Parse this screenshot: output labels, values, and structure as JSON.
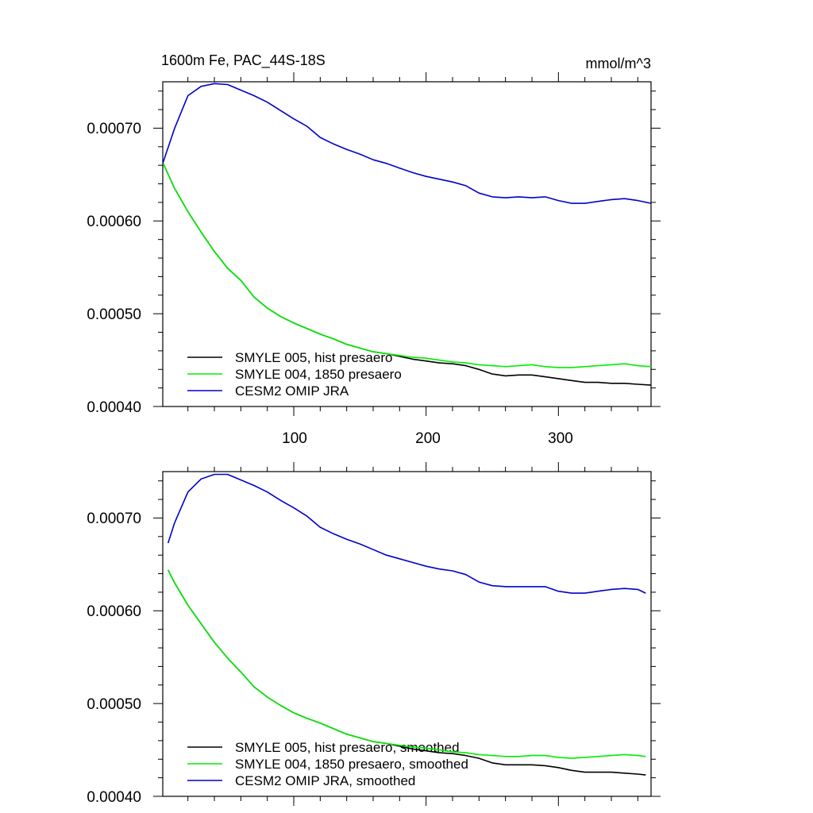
{
  "chart_data": [
    {
      "type": "line",
      "title_left": "1600m Fe, PAC_44S-18S",
      "title_right": "mmol/m^3",
      "xlabel": "",
      "ylabel": "",
      "xlim": [
        1,
        370
      ],
      "ylim": [
        0.0004,
        0.00075
      ],
      "x_ticks": [
        100,
        200,
        300
      ],
      "x_tick_labels": [
        "100",
        "200",
        "300"
      ],
      "y_ticks": [
        0.0004,
        0.0005,
        0.0006,
        0.0007
      ],
      "y_tick_labels": [
        "0.00040",
        "0.00050",
        "0.00060",
        "0.00070"
      ],
      "legend_position": "bottom-left",
      "series": [
        {
          "name": "SMYLE 005, hist presaero",
          "color": "#000000",
          "x": [
            1,
            10,
            20,
            30,
            40,
            50,
            60,
            70,
            80,
            90,
            100,
            110,
            120,
            130,
            140,
            150,
            160,
            170,
            180,
            190,
            200,
            210,
            220,
            230,
            240,
            250,
            260,
            270,
            280,
            290,
            300,
            310,
            320,
            330,
            340,
            350,
            360,
            370
          ],
          "values": [
            0.000663,
            0.000635,
            0.00061,
            0.000588,
            0.000567,
            0.000549,
            0.000536,
            0.000518,
            0.000506,
            0.000497,
            0.00049,
            0.000484,
            0.000478,
            0.000473,
            0.000467,
            0.000463,
            0.000459,
            0.000457,
            0.000454,
            0.000451,
            0.000449,
            0.000447,
            0.000446,
            0.000444,
            0.00044,
            0.000435,
            0.000433,
            0.000434,
            0.000434,
            0.000432,
            0.00043,
            0.000428,
            0.000426,
            0.000426,
            0.000425,
            0.000425,
            0.000424,
            0.000423
          ]
        },
        {
          "name": "SMYLE 004, 1850 presaero",
          "color": "#00ee00",
          "x": [
            1,
            10,
            20,
            30,
            40,
            50,
            60,
            70,
            80,
            90,
            100,
            110,
            120,
            130,
            140,
            150,
            160,
            170,
            180,
            190,
            200,
            210,
            220,
            230,
            240,
            250,
            260,
            270,
            280,
            290,
            300,
            310,
            320,
            330,
            340,
            350,
            360,
            370
          ],
          "values": [
            0.000663,
            0.000635,
            0.00061,
            0.000588,
            0.000567,
            0.000549,
            0.000536,
            0.000518,
            0.000506,
            0.000497,
            0.00049,
            0.000484,
            0.000478,
            0.000473,
            0.000467,
            0.000463,
            0.000459,
            0.000457,
            0.000455,
            0.000453,
            0.000452,
            0.00045,
            0.000448,
            0.000447,
            0.000445,
            0.000444,
            0.000443,
            0.000444,
            0.000445,
            0.000443,
            0.000442,
            0.000442,
            0.000443,
            0.000444,
            0.000445,
            0.000446,
            0.000444,
            0.000443
          ]
        },
        {
          "name": "CESM2 OMIP JRA",
          "color": "#0000cc",
          "x": [
            1,
            10,
            20,
            30,
            40,
            50,
            60,
            70,
            80,
            90,
            100,
            110,
            120,
            130,
            140,
            150,
            160,
            170,
            180,
            190,
            200,
            210,
            220,
            230,
            240,
            250,
            260,
            270,
            280,
            290,
            300,
            310,
            320,
            330,
            340,
            350,
            360,
            370
          ],
          "values": [
            0.000662,
            0.0007,
            0.000735,
            0.000745,
            0.000748,
            0.000747,
            0.000741,
            0.000735,
            0.000728,
            0.000719,
            0.00071,
            0.000702,
            0.00069,
            0.000683,
            0.000677,
            0.000672,
            0.000666,
            0.000662,
            0.000657,
            0.000652,
            0.000648,
            0.000645,
            0.000642,
            0.000638,
            0.00063,
            0.000626,
            0.000625,
            0.000626,
            0.000625,
            0.000626,
            0.000622,
            0.000619,
            0.000619,
            0.000621,
            0.000623,
            0.000624,
            0.000622,
            0.000619
          ]
        }
      ]
    },
    {
      "type": "line",
      "title_left": "",
      "title_right": "",
      "xlabel": "",
      "ylabel": "",
      "xlim": [
        1,
        370
      ],
      "ylim": [
        0.0004,
        0.00075
      ],
      "x_ticks": [
        100,
        200,
        300
      ],
      "x_tick_labels": [],
      "y_ticks": [
        0.0004,
        0.0005,
        0.0006,
        0.0007
      ],
      "y_tick_labels": [
        "0.00040",
        "0.00050",
        "0.00060",
        "0.00070"
      ],
      "legend_position": "bottom-left",
      "series": [
        {
          "name": "SMYLE 005, hist presaero, smoothed",
          "color": "#000000",
          "x": [
            5,
            10,
            20,
            30,
            40,
            50,
            60,
            70,
            80,
            90,
            100,
            110,
            120,
            130,
            140,
            150,
            160,
            170,
            180,
            190,
            200,
            210,
            220,
            230,
            240,
            250,
            260,
            270,
            280,
            290,
            300,
            310,
            320,
            330,
            340,
            350,
            360,
            366
          ],
          "values": [
            0.000644,
            0.00063,
            0.000606,
            0.000586,
            0.000566,
            0.000549,
            0.000534,
            0.000518,
            0.000507,
            0.000498,
            0.00049,
            0.000484,
            0.000479,
            0.000473,
            0.000467,
            0.000463,
            0.000459,
            0.000457,
            0.000454,
            0.000451,
            0.000449,
            0.000447,
            0.000446,
            0.000444,
            0.000441,
            0.000436,
            0.000434,
            0.000434,
            0.000434,
            0.000433,
            0.000431,
            0.000428,
            0.000426,
            0.000426,
            0.000426,
            0.000425,
            0.000424,
            0.000423
          ]
        },
        {
          "name": "SMYLE 004, 1850 presaero, smoothed",
          "color": "#00ee00",
          "x": [
            5,
            10,
            20,
            30,
            40,
            50,
            60,
            70,
            80,
            90,
            100,
            110,
            120,
            130,
            140,
            150,
            160,
            170,
            180,
            190,
            200,
            210,
            220,
            230,
            240,
            250,
            260,
            270,
            280,
            290,
            300,
            310,
            320,
            330,
            340,
            350,
            360,
            366
          ],
          "values": [
            0.000644,
            0.00063,
            0.000606,
            0.000586,
            0.000566,
            0.000549,
            0.000534,
            0.000518,
            0.000507,
            0.000498,
            0.00049,
            0.000484,
            0.000479,
            0.000473,
            0.000467,
            0.000463,
            0.000459,
            0.000457,
            0.000455,
            0.000453,
            0.000452,
            0.00045,
            0.000448,
            0.000447,
            0.000445,
            0.000444,
            0.000443,
            0.000443,
            0.000444,
            0.000444,
            0.000442,
            0.000441,
            0.000442,
            0.000443,
            0.000444,
            0.000445,
            0.000444,
            0.000443
          ]
        },
        {
          "name": "CESM2 OMIP JRA, smoothed",
          "color": "#0000cc",
          "x": [
            5,
            10,
            20,
            30,
            40,
            50,
            60,
            70,
            80,
            90,
            100,
            110,
            120,
            130,
            140,
            150,
            160,
            170,
            180,
            190,
            200,
            210,
            220,
            230,
            240,
            250,
            260,
            270,
            280,
            290,
            300,
            310,
            320,
            330,
            340,
            350,
            360,
            366
          ],
          "values": [
            0.000673,
            0.000695,
            0.000728,
            0.000742,
            0.000747,
            0.000747,
            0.000741,
            0.000735,
            0.000728,
            0.000719,
            0.000711,
            0.000702,
            0.00069,
            0.000683,
            0.000677,
            0.000672,
            0.000666,
            0.00066,
            0.000656,
            0.000652,
            0.000648,
            0.000645,
            0.000643,
            0.000639,
            0.000631,
            0.000627,
            0.000626,
            0.000626,
            0.000626,
            0.000626,
            0.000621,
            0.000619,
            0.000619,
            0.000621,
            0.000623,
            0.000624,
            0.000623,
            0.000619
          ]
        }
      ]
    }
  ]
}
